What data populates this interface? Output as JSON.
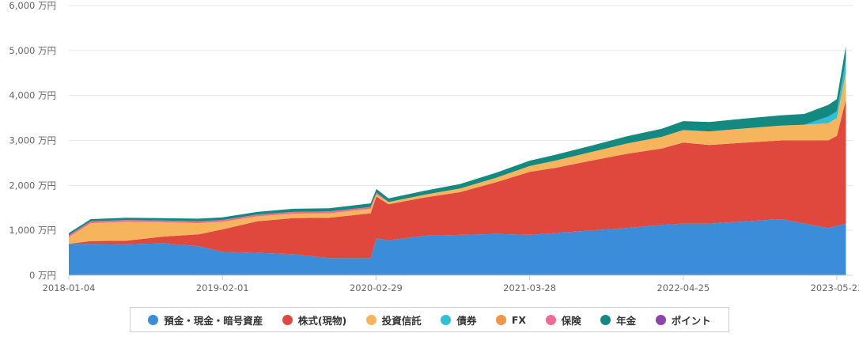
{
  "chart_data": {
    "type": "area",
    "stacked": true,
    "y_unit": "万円",
    "ylim": [
      0,
      6000
    ],
    "yticks": [
      "0 万円",
      "1,000 万円",
      "2,000 万円",
      "3,000 万円",
      "4,000 万円",
      "5,000 万円",
      "6,000 万円"
    ],
    "xticks": [
      "2018-01-04",
      "2019-02-01",
      "2020-02-29",
      "2021-03-28",
      "2022-04-25",
      "2023-05-23"
    ],
    "grid": true,
    "legend_position": "bottom",
    "x": [
      "2018-01-04",
      "2018-03-01",
      "2018-06-01",
      "2018-09-01",
      "2018-12-01",
      "2019-02-01",
      "2019-05-01",
      "2019-08-01",
      "2019-11-01",
      "2020-02-15",
      "2020-03-01",
      "2020-04-01",
      "2020-07-01",
      "2020-10-01",
      "2021-01-01",
      "2021-03-28",
      "2021-06-01",
      "2021-09-01",
      "2021-12-01",
      "2022-03-01",
      "2022-04-25",
      "2022-07-01",
      "2022-10-01",
      "2023-01-01",
      "2023-03-01",
      "2023-05-01",
      "2023-05-23",
      "2023-06-15"
    ],
    "series": [
      {
        "name": "預金・現金・暗号資産",
        "color": "#3b8cd9",
        "values": [
          700,
          700,
          690,
          710,
          650,
          520,
          500,
          470,
          380,
          380,
          820,
          780,
          880,
          900,
          920,
          900,
          940,
          1000,
          1050,
          1120,
          1150,
          1150,
          1200,
          1250,
          1150,
          1050,
          1100,
          1150
        ]
      },
      {
        "name": "株式(現物)",
        "color": "#e0483d",
        "values": [
          0,
          60,
          80,
          150,
          260,
          500,
          700,
          800,
          900,
          1000,
          930,
          800,
          850,
          950,
          1150,
          1400,
          1450,
          1550,
          1650,
          1700,
          1800,
          1750,
          1750,
          1750,
          1850,
          1950,
          2000,
          2750
        ]
      },
      {
        "name": "投資信託",
        "color": "#f6b55d",
        "values": [
          150,
          400,
          420,
          320,
          250,
          170,
          110,
          100,
          100,
          100,
          50,
          50,
          60,
          80,
          100,
          130,
          160,
          190,
          230,
          260,
          280,
          300,
          320,
          330,
          350,
          380,
          400,
          600
        ]
      },
      {
        "name": "債券",
        "color": "#2ebfd9",
        "values": [
          0,
          0,
          0,
          0,
          0,
          0,
          0,
          0,
          0,
          0,
          0,
          0,
          0,
          0,
          0,
          0,
          0,
          0,
          0,
          0,
          0,
          0,
          0,
          0,
          0,
          150,
          150,
          300
        ]
      },
      {
        "name": "FX",
        "color": "#f39545",
        "values": [
          0,
          0,
          0,
          0,
          0,
          0,
          0,
          0,
          0,
          0,
          0,
          0,
          0,
          0,
          0,
          0,
          0,
          0,
          0,
          0,
          0,
          0,
          0,
          0,
          0,
          0,
          0,
          0
        ]
      },
      {
        "name": "保険",
        "color": "#ef6b93",
        "values": [
          40,
          40,
          40,
          40,
          40,
          40,
          40,
          40,
          40,
          40,
          40,
          0,
          0,
          0,
          0,
          0,
          0,
          0,
          0,
          0,
          0,
          0,
          0,
          0,
          0,
          0,
          0,
          0
        ]
      },
      {
        "name": "年金",
        "color": "#14897f",
        "values": [
          50,
          50,
          50,
          50,
          60,
          60,
          60,
          70,
          70,
          80,
          80,
          80,
          90,
          100,
          110,
          120,
          130,
          140,
          160,
          180,
          200,
          210,
          220,
          230,
          240,
          260,
          270,
          300
        ]
      },
      {
        "name": "ポイント",
        "color": "#8e44ad",
        "values": [
          0,
          0,
          0,
          0,
          0,
          0,
          0,
          0,
          0,
          0,
          0,
          0,
          0,
          0,
          0,
          0,
          0,
          0,
          0,
          0,
          0,
          0,
          0,
          0,
          0,
          0,
          0,
          0
        ]
      }
    ]
  }
}
